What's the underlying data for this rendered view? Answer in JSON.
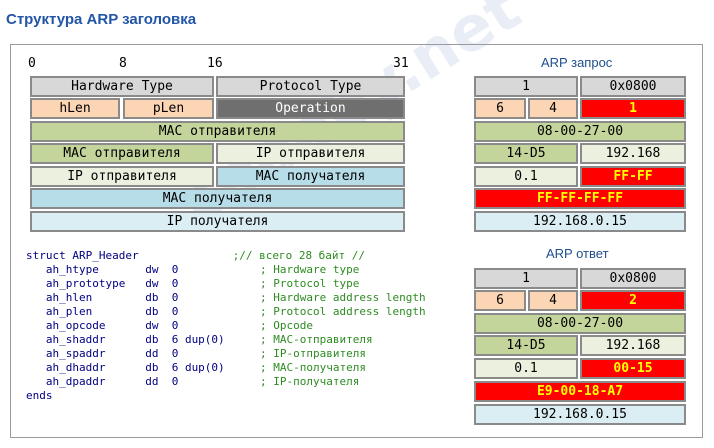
{
  "title": "Структура ARP заголовка",
  "watermark": "codeby.net",
  "bits": [
    "0",
    "8",
    "16",
    "31"
  ],
  "header": {
    "hardware_type": "Hardware Type",
    "protocol_type": "Protocol Type",
    "hlen": "hLen",
    "plen": "pLen",
    "operation": "Operation",
    "mac_sender": "MAC отправителя",
    "mac_sender_2": "MAC отправителя",
    "ip_sender": "IP отправителя",
    "ip_sender_2": "IP отправителя",
    "mac_receiver": "MAC получателя",
    "mac_receiver_2": "MAC получателя",
    "ip_receiver": "IP получателя"
  },
  "request": {
    "title": "ARP запрос",
    "hw": "1",
    "proto": "0x0800",
    "hlen": "6",
    "plen": "4",
    "op": "1",
    "mac1": "08-00-27-00",
    "mac2": "14-D5",
    "ip1": "192.168",
    "ip2": "0.1",
    "tmac1": "FF-FF",
    "tmac2": "FF-FF-FF-FF",
    "tip": "192.168.0.15"
  },
  "reply": {
    "title": "ARP ответ",
    "hw": "1",
    "proto": "0x0800",
    "hlen": "6",
    "plen": "4",
    "op": "2",
    "mac1": "08-00-27-00",
    "mac2": "14-D5",
    "ip1": "192.168",
    "ip2": "0.1",
    "tmac1": "00-15",
    "tmac2": "E9-00-18-A7",
    "tip": "192.168.0.15"
  },
  "code": {
    "l0": "struct ARP_Header",
    "l0c": ";// всего 28 байт //",
    "l1": "   ah_htype       dw  0",
    "l1c": "; Hardware type",
    "l2": "   ah_prototype   dw  0",
    "l2c": "; Protocol type",
    "l3": "   ah_hlen        db  0",
    "l3c": "; Hardware address length",
    "l4": "   ah_plen        db  0",
    "l4c": "; Protocol address length",
    "l5": "   ah_opcode      dw  0",
    "l5c": "; Opcode",
    "l6": "   ah_shaddr      db  6 dup(0)",
    "l6c": "; MAC-отправителя",
    "l7": "   ah_spaddr      dd  0",
    "l7c": "; IP-отправителя",
    "l8": "   ah_dhaddr      db  6 dup(0)",
    "l8c": "; MAC-получателя",
    "l9": "   ah_dpaddr      dd  0",
    "l9c": "; IP-получателя",
    "l10": "ends"
  }
}
